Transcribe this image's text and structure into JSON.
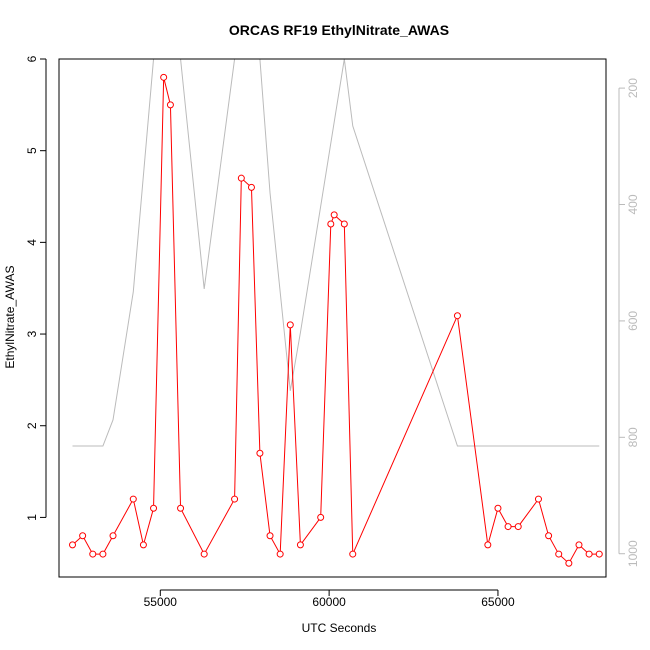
{
  "chart_data": {
    "type": "line",
    "title": "ORCAS RF19 EthylNitrate_AWAS",
    "xlabel": "UTC Seconds",
    "ylabel": "EthylNitrate_AWAS",
    "xlim": [
      52000,
      68200
    ],
    "ylim": [
      0.35,
      6.0
    ],
    "x_ticks": [
      55000,
      60000,
      65000
    ],
    "y_ticks": [
      1,
      2,
      3,
      4,
      5,
      6
    ],
    "y2lim": [
      1040,
      150
    ],
    "y2_ticks": [
      200,
      400,
      600,
      800,
      1000
    ],
    "series": [
      {
        "color": "#ff0000",
        "marker": "open-circle",
        "axis": "left",
        "x": [
          52400,
          52700,
          53000,
          53300,
          53600,
          54200,
          54500,
          54800,
          55100,
          55300,
          55600,
          56300,
          57200,
          57400,
          57700,
          57950,
          58250,
          58550,
          58850,
          59150,
          59750,
          60050,
          60150,
          60450,
          60700,
          63800,
          64700,
          65000,
          65300,
          65600,
          66200,
          66500,
          66800,
          67100,
          67400,
          67700,
          68000
        ],
        "y": [
          0.7,
          0.8,
          0.6,
          0.6,
          0.8,
          1.2,
          0.7,
          1.1,
          5.8,
          5.5,
          1.1,
          0.6,
          1.2,
          4.7,
          4.6,
          1.7,
          0.8,
          0.6,
          3.1,
          0.7,
          1.0,
          4.2,
          4.3,
          4.2,
          0.6,
          3.2,
          0.7,
          1.1,
          0.9,
          0.9,
          1.2,
          0.8,
          0.6,
          0.5,
          0.7,
          0.6,
          0.6
        ]
      },
      {
        "color": "#bbbbbb",
        "marker": "none",
        "axis": "right",
        "x": [
          52400,
          53300,
          53600,
          54200,
          54800,
          55100,
          55600,
          56300,
          57200,
          57400,
          57950,
          58250,
          58850,
          59150,
          60450,
          60700,
          63800,
          68000
        ],
        "y": [
          815,
          815,
          770,
          550,
          150,
          150,
          150,
          545,
          150,
          150,
          150,
          380,
          720,
          620,
          150,
          265,
          815,
          815
        ]
      }
    ]
  }
}
